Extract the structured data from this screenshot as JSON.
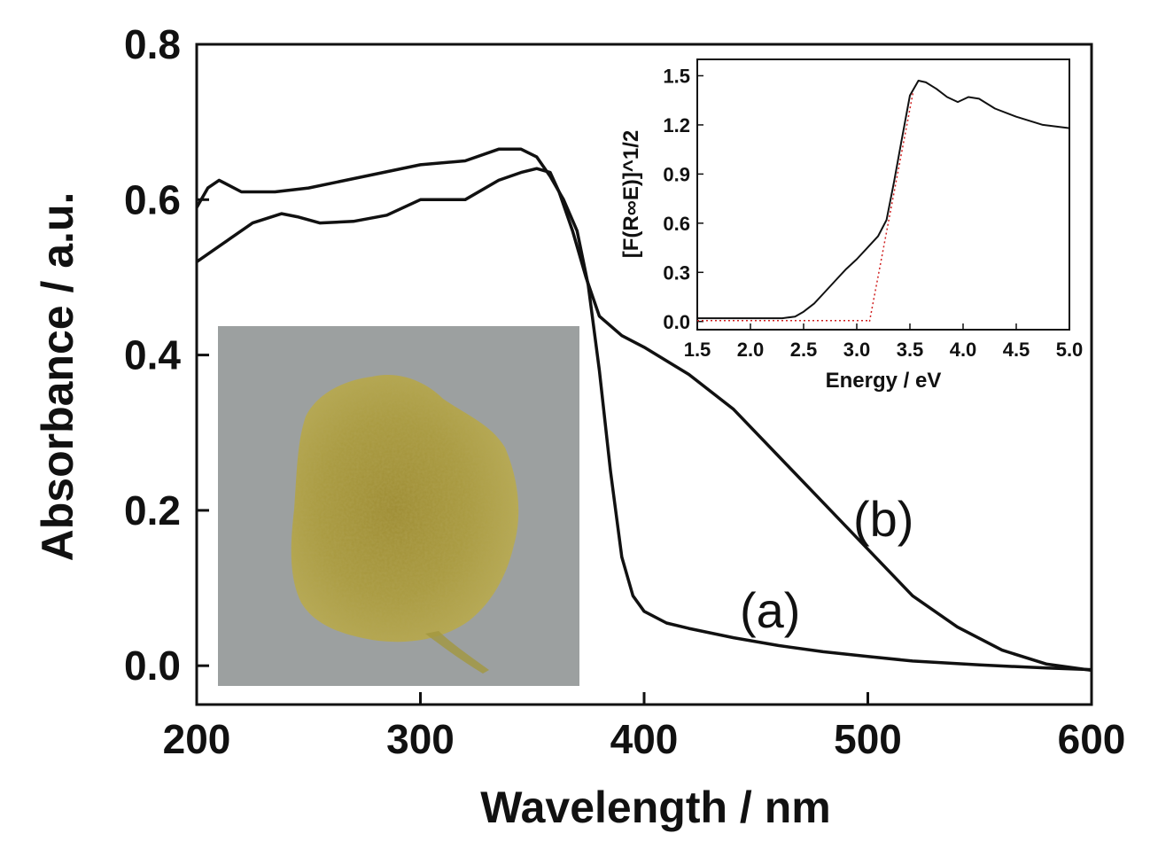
{
  "chart_data": [
    {
      "type": "line",
      "xlabel": "Wavelength / nm",
      "ylabel": "Absorbance / a.u.",
      "xlim": [
        200,
        600
      ],
      "ylim": [
        -0.05,
        0.8
      ],
      "xticks": [
        200,
        300,
        400,
        500,
        600
      ],
      "xtick_labels": [
        "200",
        "300",
        "400",
        "500",
        "600"
      ],
      "yticks": [
        0.0,
        0.2,
        0.4,
        0.6,
        0.8
      ],
      "ytick_labels": [
        "0.0",
        "0.2",
        "0.4",
        "0.6",
        "0.8"
      ],
      "grid": false,
      "series": [
        {
          "name": "(a)",
          "x": [
            200,
            205,
            210,
            220,
            235,
            250,
            275,
            300,
            320,
            335,
            345,
            352,
            358,
            364,
            370,
            375,
            380,
            385,
            390,
            395,
            400,
            410,
            420,
            440,
            460,
            480,
            500,
            520,
            550,
            580,
            600
          ],
          "y": [
            0.59,
            0.615,
            0.625,
            0.61,
            0.61,
            0.615,
            0.63,
            0.645,
            0.65,
            0.665,
            0.665,
            0.655,
            0.63,
            0.6,
            0.56,
            0.49,
            0.38,
            0.25,
            0.14,
            0.09,
            0.07,
            0.055,
            0.048,
            0.036,
            0.026,
            0.018,
            0.012,
            0.006,
            0.001,
            -0.003,
            -0.005
          ]
        },
        {
          "name": "(b)",
          "x": [
            200,
            215,
            225,
            238,
            245,
            255,
            270,
            285,
            300,
            320,
            335,
            345,
            352,
            358,
            362,
            368,
            374,
            380,
            390,
            400,
            420,
            440,
            460,
            480,
            500,
            520,
            540,
            560,
            580,
            600
          ],
          "y": [
            0.52,
            0.55,
            0.57,
            0.582,
            0.578,
            0.57,
            0.572,
            0.58,
            0.6,
            0.6,
            0.625,
            0.635,
            0.64,
            0.635,
            0.61,
            0.56,
            0.5,
            0.45,
            0.425,
            0.41,
            0.375,
            0.33,
            0.27,
            0.21,
            0.15,
            0.09,
            0.05,
            0.02,
            0.002,
            -0.006
          ]
        }
      ],
      "annotations": [
        "(a)",
        "(b)"
      ]
    },
    {
      "type": "line",
      "xlabel": "Energy / eV",
      "ylabel": "[F(R∞E)]^1/2",
      "xlim": [
        1.5,
        5.0
      ],
      "ylim": [
        -0.05,
        1.6
      ],
      "xticks": [
        1.5,
        2.0,
        2.5,
        3.0,
        3.5,
        4.0,
        4.5,
        5.0
      ],
      "xtick_labels": [
        "1.5",
        "2.0",
        "2.5",
        "3.0",
        "3.5",
        "4.0",
        "4.5",
        "5.0"
      ],
      "yticks": [
        0.0,
        0.3,
        0.6,
        0.9,
        1.2,
        1.5
      ],
      "ytick_labels": [
        "0.0",
        "0.3",
        "0.6",
        "0.9",
        "1.2",
        "1.5"
      ],
      "grid": false,
      "series": [
        {
          "x": [
            1.5,
            2.0,
            2.3,
            2.42,
            2.5,
            2.6,
            2.7,
            2.8,
            2.9,
            3.0,
            3.1,
            3.2,
            3.28,
            3.35,
            3.42,
            3.5,
            3.58,
            3.65,
            3.75,
            3.85,
            3.95,
            4.05,
            4.15,
            4.3,
            4.5,
            4.75,
            5.0
          ],
          "y": [
            0.02,
            0.02,
            0.02,
            0.03,
            0.06,
            0.11,
            0.18,
            0.25,
            0.32,
            0.38,
            0.45,
            0.52,
            0.62,
            0.85,
            1.1,
            1.38,
            1.47,
            1.46,
            1.42,
            1.37,
            1.34,
            1.37,
            1.36,
            1.3,
            1.25,
            1.2,
            1.18
          ]
        },
        {
          "x": [
            3.12,
            3.53
          ],
          "y": [
            0.0,
            1.4
          ],
          "color": "#d02020",
          "style": "dotted"
        },
        {
          "x": [
            1.5,
            3.12
          ],
          "y": [
            0.005,
            0.005
          ],
          "color": "#d02020",
          "style": "dotted"
        }
      ]
    }
  ],
  "inset_photo": {
    "description_color": "#a89a3a"
  }
}
